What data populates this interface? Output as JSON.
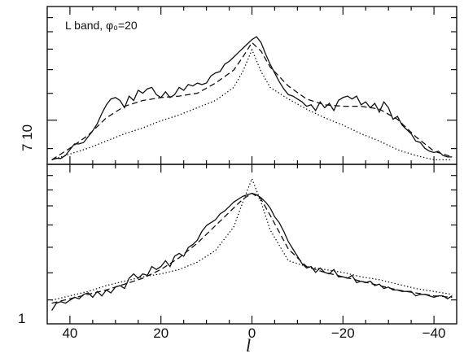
{
  "chart_data": [
    {
      "type": "line",
      "panel": "top",
      "annotation": "L band, φ₀=20",
      "xlabel": "",
      "ylabel": "",
      "y_tick_label": "7 10",
      "xlim": [
        45,
        -45
      ],
      "ylim": [
        0,
        100
      ],
      "series": [
        {
          "style": "solid",
          "x": [
            44,
            43,
            42,
            41,
            40,
            39,
            38,
            37,
            36,
            35,
            34,
            33,
            32,
            31,
            30,
            29,
            28,
            27,
            26,
            25,
            24,
            23,
            22,
            21,
            20,
            19,
            18,
            17,
            16,
            15,
            14,
            13,
            12,
            11,
            10,
            9,
            8,
            7,
            6,
            5,
            4,
            3,
            2,
            1,
            0,
            -1,
            -2,
            -3,
            -4,
            -5,
            -6,
            -7,
            -8,
            -9,
            -10,
            -11,
            -12,
            -13,
            -14,
            -15,
            -16,
            -17,
            -18,
            -19,
            -20,
            -21,
            -22,
            -23,
            -24,
            -25,
            -26,
            -27,
            -28,
            -29,
            -30,
            -31,
            -32,
            -33,
            -34,
            -35,
            -36,
            -37,
            -38,
            -39,
            -40,
            -41,
            -42,
            -43,
            -44
          ],
          "y": [
            2,
            3,
            3,
            5,
            9,
            13,
            13,
            14,
            18,
            22,
            27,
            34,
            40,
            44,
            45,
            43,
            38,
            46,
            43,
            50,
            48,
            51,
            52,
            47,
            45,
            49,
            45,
            47,
            52,
            50,
            54,
            53,
            55,
            54,
            55,
            60,
            62,
            63,
            68,
            70,
            73,
            76,
            79,
            82,
            85,
            87,
            83,
            75,
            68,
            62,
            56,
            51,
            47,
            46,
            44,
            42,
            39,
            40,
            36,
            42,
            38,
            41,
            36,
            43,
            45,
            46,
            44,
            46,
            40,
            42,
            38,
            41,
            35,
            42,
            38,
            30,
            32,
            26,
            23,
            20,
            15,
            14,
            10,
            8,
            7,
            8,
            5,
            4,
            4
          ]
        },
        {
          "style": "dashed",
          "x": [
            44,
            40,
            36,
            32,
            28,
            24,
            20,
            16,
            12,
            8,
            4,
            2,
            0,
            -2,
            -4,
            -8,
            -12,
            -16,
            -20,
            -24,
            -28,
            -32,
            -36,
            -40,
            -44
          ],
          "y": [
            2,
            10,
            19,
            31,
            39,
            43,
            45,
            46,
            48,
            55,
            64,
            73,
            83,
            77,
            66,
            53,
            44,
            40,
            39,
            39,
            37,
            30,
            18,
            8,
            4
          ]
        },
        {
          "style": "dotted",
          "x": [
            44,
            40,
            36,
            32,
            28,
            24,
            20,
            16,
            12,
            8,
            4,
            2,
            0,
            -2,
            -4,
            -8,
            -12,
            -16,
            -20,
            -24,
            -28,
            -32,
            -36,
            -40,
            -44
          ],
          "y": [
            2,
            6,
            10,
            15,
            20,
            24,
            29,
            33,
            38,
            43,
            52,
            63,
            78,
            63,
            52,
            44,
            37,
            31,
            26,
            20,
            15,
            9,
            5,
            2,
            2
          ]
        }
      ]
    },
    {
      "type": "line",
      "panel": "bottom",
      "xlabel": "l",
      "ylabel": "",
      "y_tick_label": "1",
      "xlim": [
        45,
        -45
      ],
      "x_ticks": [
        40,
        20,
        0,
        -20,
        -40
      ],
      "x_tick_labels": [
        "40",
        "20",
        "0",
        "−20",
        "−40"
      ],
      "ylim": [
        0,
        100
      ],
      "series": [
        {
          "style": "solid",
          "x": [
            44,
            43,
            42,
            41,
            40,
            39,
            38,
            37,
            36,
            35,
            34,
            33,
            32,
            31,
            30,
            29,
            28,
            27,
            26,
            25,
            24,
            23,
            22,
            21,
            20,
            19,
            18,
            17,
            16,
            15,
            14,
            13,
            12,
            11,
            10,
            9,
            8,
            7,
            6,
            5,
            4,
            3,
            2,
            1,
            0,
            -1,
            -2,
            -3,
            -4,
            -5,
            -6,
            -7,
            -8,
            -9,
            -10,
            -11,
            -12,
            -13,
            -14,
            -15,
            -16,
            -17,
            -18,
            -19,
            -20,
            -21,
            -22,
            -23,
            -24,
            -25,
            -26,
            -27,
            -28,
            -29,
            -30,
            -31,
            -32,
            -33,
            -34,
            -35,
            -36,
            -37,
            -38,
            -39,
            -40,
            -41,
            -42,
            -43,
            -44
          ],
          "y": [
            8,
            13,
            14,
            13,
            15,
            17,
            16,
            19,
            20,
            17,
            21,
            18,
            22,
            20,
            24,
            25,
            23,
            30,
            33,
            30,
            33,
            32,
            38,
            36,
            38,
            42,
            38,
            45,
            47,
            45,
            51,
            53,
            56,
            62,
            66,
            68,
            70,
            74,
            76,
            79,
            82,
            84,
            86,
            87,
            88,
            87,
            85,
            82,
            78,
            72,
            68,
            62,
            55,
            50,
            45,
            40,
            37,
            38,
            34,
            37,
            34,
            33,
            36,
            31,
            31,
            30,
            32,
            27,
            28,
            27,
            28,
            25,
            26,
            23,
            24,
            22,
            22,
            21,
            21,
            21,
            18,
            19,
            19,
            18,
            17,
            18,
            18,
            16,
            18
          ]
        },
        {
          "style": "dashed",
          "x": [
            44,
            40,
            36,
            32,
            28,
            24,
            20,
            16,
            12,
            8,
            4,
            2,
            0,
            -2,
            -4,
            -8,
            -12,
            -16,
            -20,
            -24,
            -28,
            -32,
            -36,
            -40,
            -44
          ],
          "y": [
            13,
            16,
            19,
            22,
            26,
            30,
            36,
            44,
            54,
            66,
            78,
            84,
            88,
            84,
            73,
            50,
            38,
            34,
            31,
            28,
            25,
            22,
            20,
            18,
            17
          ]
        },
        {
          "style": "dotted",
          "x": [
            44,
            40,
            36,
            32,
            28,
            24,
            20,
            16,
            12,
            8,
            4,
            2,
            0,
            -2,
            -4,
            -8,
            -12,
            -16,
            -20,
            -24,
            -28,
            -32,
            -36,
            -40,
            -44
          ],
          "y": [
            15,
            18,
            21,
            25,
            28,
            31,
            33,
            36,
            41,
            49,
            65,
            82,
            98,
            82,
            63,
            42,
            38,
            36,
            34,
            31,
            29,
            26,
            23,
            21,
            19
          ]
        }
      ]
    }
  ]
}
